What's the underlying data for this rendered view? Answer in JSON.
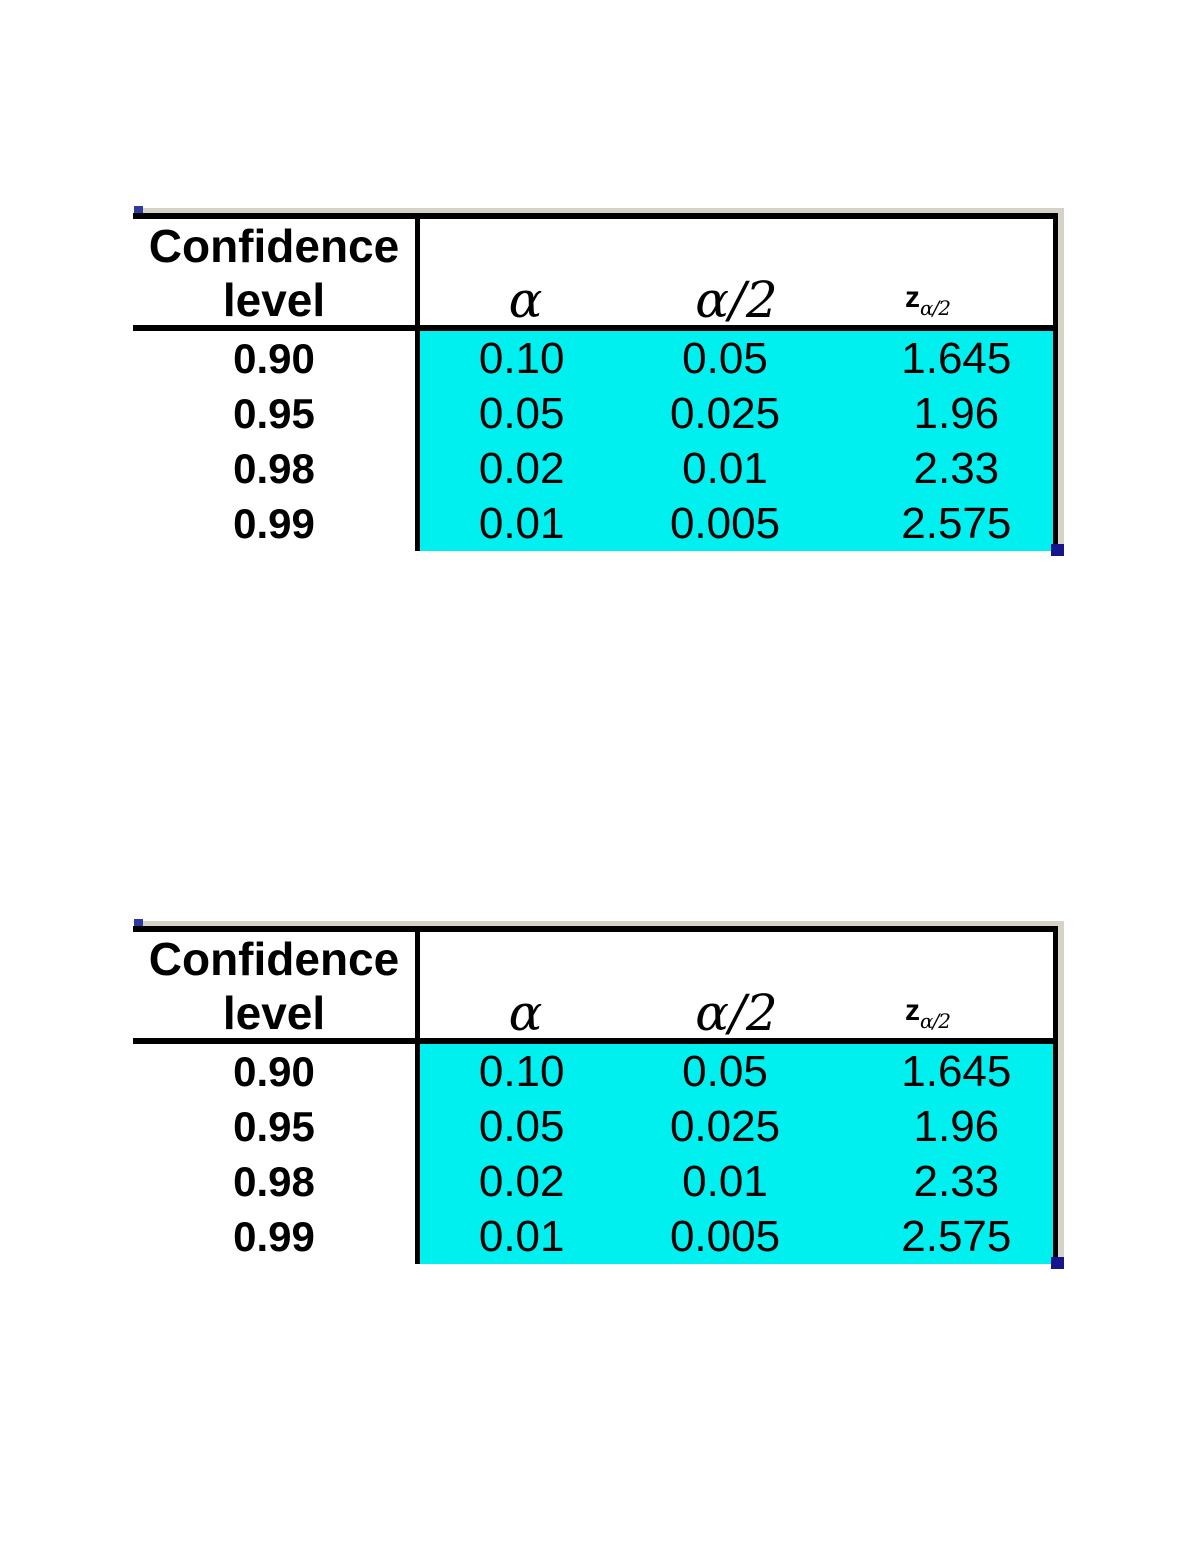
{
  "colors": {
    "page_background": "#ffffff",
    "highlight_cyan": "#00efef",
    "outer_edge_gray": "#d6d2c8",
    "corner_tick_blue": "#2f3a9e",
    "corner_tick_navy": "#15158c",
    "border_black": "#000000"
  },
  "table": {
    "header": {
      "row_label_line1": "Confidence",
      "row_label_line2": "level",
      "col_alpha": "α",
      "col_alpha_over_two": "α/2",
      "col_z_base": "z",
      "col_z_subscript": "α/2"
    },
    "rows": [
      {
        "confidence_level": "0.90",
        "alpha": "0.10",
        "alpha_over_two": "0.05",
        "z_value": "1.645"
      },
      {
        "confidence_level": "0.95",
        "alpha": "0.05",
        "alpha_over_two": "0.025",
        "z_value": "1.96"
      },
      {
        "confidence_level": "0.98",
        "alpha": "0.02",
        "alpha_over_two": "0.01",
        "z_value": "2.33"
      },
      {
        "confidence_level": "0.99",
        "alpha": "0.01",
        "alpha_over_two": "0.005",
        "z_value": "2.575"
      }
    ]
  }
}
